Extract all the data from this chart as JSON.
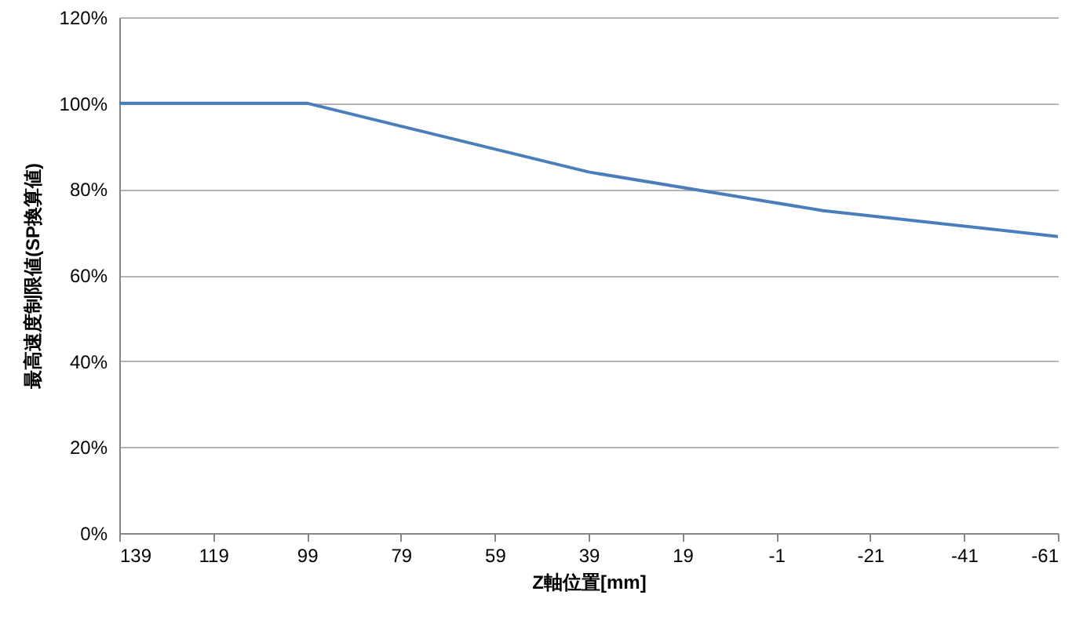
{
  "chart_data": {
    "type": "line",
    "xlabel": "Z軸位置[mm]",
    "ylabel": "最高速度制限値(SP換算値)",
    "x": [
      139,
      99,
      39,
      -11,
      -61
    ],
    "series": [
      {
        "color": "#4a7ebb",
        "values": [
          100,
          100,
          84,
          75,
          69
        ]
      }
    ],
    "xlim": [
      139,
      -61
    ],
    "xticks": [
      139,
      119,
      99,
      79,
      59,
      39,
      19,
      -1,
      -21,
      -41,
      -61
    ],
    "ylim": [
      0,
      120
    ],
    "yticks": [
      {
        "value": 0,
        "label": "0%"
      },
      {
        "value": 20,
        "label": "20%"
      },
      {
        "value": 40,
        "label": "40%"
      },
      {
        "value": 60,
        "label": "60%"
      },
      {
        "value": 80,
        "label": "80%"
      },
      {
        "value": 100,
        "label": "100%"
      },
      {
        "value": 120,
        "label": "120%"
      }
    ],
    "grid": "y",
    "marker": "none",
    "line_style": "solid"
  }
}
